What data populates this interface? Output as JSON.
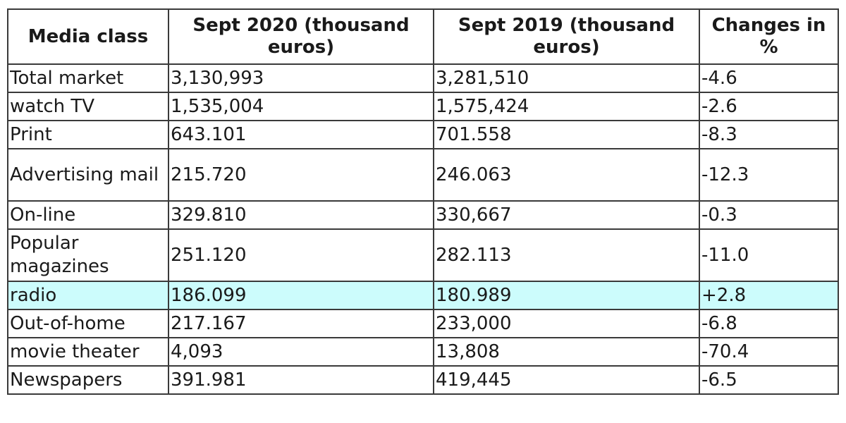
{
  "table": {
    "headers": [
      "Media class",
      "Sept 2020 (thousand euros)",
      "Sept 2019 (thousand euros)",
      "Changes in %"
    ],
    "rows": [
      [
        "Total market",
        "3,130,993",
        "3,281,510",
        "-4.6"
      ],
      [
        "watch TV",
        "1,535,004",
        "1,575,424",
        "-2.6"
      ],
      [
        "Print",
        "643.101",
        "701.558",
        "-8.3"
      ],
      [
        "Advertising mail",
        "215.720",
        "246.063",
        "-12.3"
      ],
      [
        "On-line",
        "329.810",
        "330,667",
        "-0.3"
      ],
      [
        "Popular magazines",
        "251.120",
        "282.113",
        "-11.0"
      ],
      [
        "radio",
        "186.099",
        "180.989",
        "+2.8"
      ],
      [
        "Out-of-home",
        "217.167",
        "233,000",
        "-6.8"
      ],
      [
        "movie theater",
        "4,093",
        "13,808",
        "-70.4"
      ],
      [
        "Newspapers",
        "391.981",
        "419,445",
        "-6.5"
      ]
    ],
    "highlight_row_color": "#ccfcfc",
    "border_color": "#3a3a3a",
    "text_color": "#1a1a1a"
  }
}
